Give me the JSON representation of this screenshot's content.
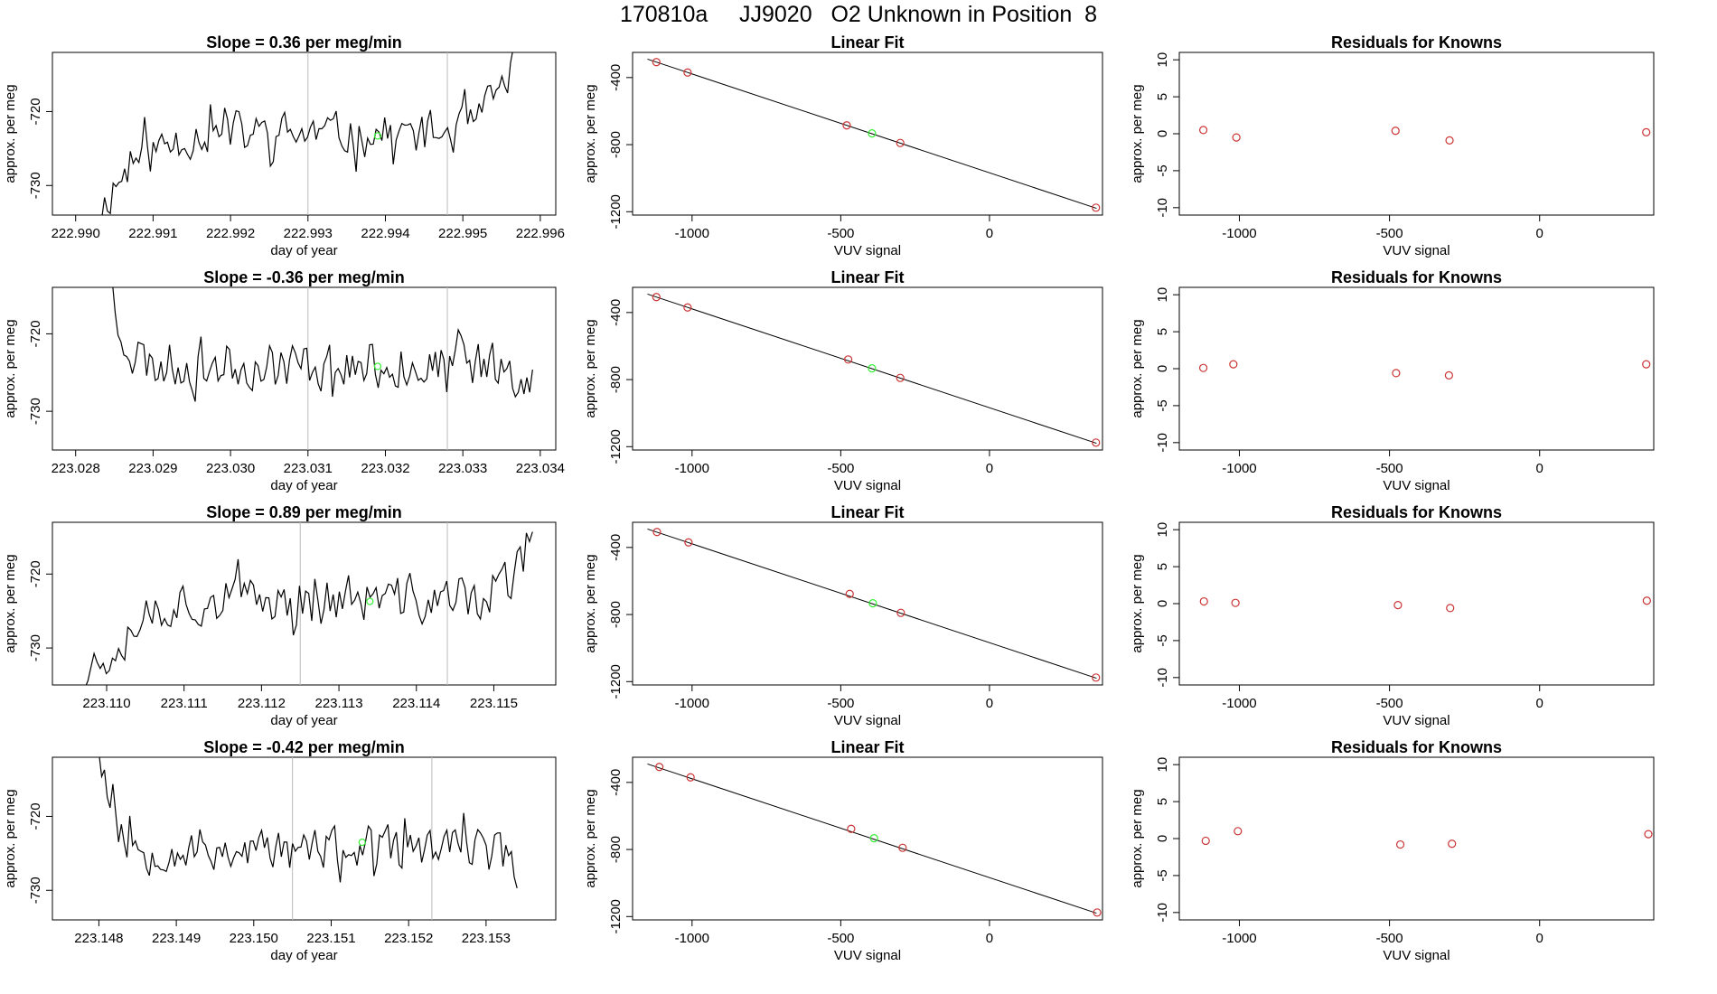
{
  "title": "170810a     JJ9020   O2 Unknown in Position  8",
  "colors": {
    "line": "#000000",
    "known": "#cc3333",
    "unknown": "#33ee33",
    "vline": "#bbbbbb",
    "axis": "#000000"
  },
  "chart_data": [
    {
      "type": "line",
      "panel": "time",
      "row": 1,
      "title": "Slope =  0.36  per meg/min",
      "xlabel": "day of year",
      "ylabel": "approx. per meg",
      "xlim": [
        222.9897,
        222.9962
      ],
      "ylim": [
        -734,
        -712
      ],
      "xticks": [
        222.99,
        222.991,
        222.992,
        222.993,
        222.994,
        222.995,
        222.996
      ],
      "xtick_labels": [
        "222.990",
        "222.991",
        "222.992",
        "222.993",
        "222.994",
        "222.995",
        "222.996"
      ],
      "yticks": [
        -720,
        -730
      ],
      "ytick_labels": [
        "-720",
        "-730"
      ],
      "vlines": [
        222.993,
        222.9948
      ],
      "unknown_point": {
        "x": 222.9939,
        "y": -723.3
      },
      "series_start": 222.9903,
      "series_end": 222.9958,
      "trend": [
        -734,
        -731,
        -729,
        -727,
        -726,
        -725,
        -724.5,
        -724,
        -723.5,
        -723,
        -723,
        -723,
        -723,
        -723,
        -723,
        -723,
        -723,
        -723,
        -723,
        -723,
        -723,
        -723,
        -723,
        -723,
        -723,
        -723,
        -723,
        -723,
        -723,
        -723,
        -723,
        -723,
        -722.5,
        -722,
        -721,
        -719,
        -716.5,
        -713.5,
        -710
      ],
      "noise_amp": 2.6,
      "seed": 11
    },
    {
      "type": "scatter",
      "panel": "fit",
      "row": 1,
      "title": "Linear Fit",
      "xlabel": "VUV signal",
      "ylabel": "approx. per meg",
      "xlim": [
        -1200,
        380
      ],
      "ylim": [
        -1220,
        -250
      ],
      "xticks": [
        -1000,
        -500,
        0
      ],
      "xtick_labels": [
        "-1000",
        "-500",
        "0"
      ],
      "yticks": [
        -400,
        -800,
        -1200
      ],
      "ytick_labels": [
        "-400",
        "-800",
        "-1200"
      ],
      "fit_line": {
        "x0": -1150,
        "y0": -290,
        "x1": 360,
        "y1": -1180
      },
      "knowns": [
        [
          -1120,
          -308
        ],
        [
          -1015,
          -370
        ],
        [
          -480,
          -685
        ],
        [
          -300,
          -790
        ],
        [
          358,
          -1176
        ]
      ],
      "unknown": [
        [
          -395,
          -733
        ]
      ]
    },
    {
      "type": "scatter",
      "panel": "resid",
      "row": 1,
      "title": "Residuals for Knowns",
      "xlabel": "VUV signal",
      "ylabel": "approx. per meg",
      "xlim": [
        -1200,
        380
      ],
      "ylim": [
        -11,
        11
      ],
      "xticks": [
        -1000,
        -500,
        0
      ],
      "xtick_labels": [
        "-1000",
        "-500",
        "0"
      ],
      "yticks": [
        10,
        5,
        0,
        -5,
        -10
      ],
      "ytick_labels": [
        "10",
        "5",
        "0",
        "-5",
        "-10"
      ],
      "points": [
        [
          -1120,
          0.5
        ],
        [
          -1010,
          -0.5
        ],
        [
          -480,
          0.4
        ],
        [
          -300,
          -0.9
        ],
        [
          355,
          0.2
        ]
      ]
    },
    {
      "type": "line",
      "panel": "time",
      "row": 2,
      "title": "Slope =  -0.36  per meg/min",
      "xlabel": "day of year",
      "ylabel": "approx. per meg",
      "xlim": [
        223.0277,
        223.0342
      ],
      "ylim": [
        -735,
        -714
      ],
      "xticks": [
        223.028,
        223.029,
        223.03,
        223.031,
        223.032,
        223.033,
        223.034
      ],
      "xtick_labels": [
        "223.028",
        "223.029",
        "223.030",
        "223.031",
        "223.032",
        "223.033",
        "223.034"
      ],
      "yticks": [
        -720,
        -730
      ],
      "ytick_labels": [
        "-720",
        "-730"
      ],
      "vlines": [
        223.031,
        223.0328
      ],
      "unknown_point": {
        "x": 223.0319,
        "y": -724.2
      },
      "series_start": 223.0284,
      "series_end": 223.0339,
      "trend": [
        -711,
        -718,
        -721.5,
        -723,
        -724,
        -724,
        -724,
        -724,
        -724,
        -724,
        -724,
        -724,
        -724,
        -724,
        -724,
        -724,
        -724,
        -724,
        -724,
        -724,
        -724,
        -724,
        -724,
        -724,
        -724,
        -724,
        -724,
        -724,
        -724,
        -724,
        -724,
        -724,
        -724,
        -724,
        -724,
        -724,
        -724.5,
        -725,
        -725.5
      ],
      "noise_amp": 2.8,
      "seed": 23
    },
    {
      "type": "scatter",
      "panel": "fit",
      "row": 2,
      "title": "Linear Fit",
      "xlabel": "VUV signal",
      "ylabel": "approx. per meg",
      "xlim": [
        -1200,
        380
      ],
      "ylim": [
        -1220,
        -250
      ],
      "xticks": [
        -1000,
        -500,
        0
      ],
      "xtick_labels": [
        "-1000",
        "-500",
        "0"
      ],
      "yticks": [
        -400,
        -800,
        -1200
      ],
      "ytick_labels": [
        "-400",
        "-800",
        "-1200"
      ],
      "fit_line": {
        "x0": -1150,
        "y0": -290,
        "x1": 360,
        "y1": -1180
      },
      "knowns": [
        [
          -1120,
          -308
        ],
        [
          -1015,
          -370
        ],
        [
          -475,
          -680
        ],
        [
          -300,
          -790
        ],
        [
          358,
          -1176
        ]
      ],
      "unknown": [
        [
          -395,
          -733
        ]
      ]
    },
    {
      "type": "scatter",
      "panel": "resid",
      "row": 2,
      "title": "Residuals for Knowns",
      "xlabel": "VUV signal",
      "ylabel": "approx. per meg",
      "xlim": [
        -1200,
        380
      ],
      "ylim": [
        -11,
        11
      ],
      "xticks": [
        -1000,
        -500,
        0
      ],
      "xtick_labels": [
        "-1000",
        "-500",
        "0"
      ],
      "yticks": [
        10,
        5,
        0,
        -5,
        -10
      ],
      "ytick_labels": [
        "10",
        "5",
        "0",
        "-5",
        "-10"
      ],
      "points": [
        [
          -1120,
          0.1
        ],
        [
          -1020,
          0.6
        ],
        [
          -478,
          -0.6
        ],
        [
          -302,
          -0.9
        ],
        [
          355,
          0.6
        ]
      ]
    },
    {
      "type": "line",
      "panel": "time",
      "row": 3,
      "title": "Slope =  0.89  per meg/min",
      "xlabel": "day of year",
      "ylabel": "approx. per meg",
      "xlim": [
        223.1093,
        223.1158
      ],
      "ylim": [
        -735,
        -713
      ],
      "xticks": [
        223.11,
        223.111,
        223.112,
        223.113,
        223.114,
        223.115
      ],
      "xtick_labels": [
        "223.110",
        "223.111",
        "223.112",
        "223.113",
        "223.114",
        "223.115"
      ],
      "yticks": [
        -720,
        -730
      ],
      "ytick_labels": [
        "-720",
        "-730"
      ],
      "vlines": [
        223.1125,
        223.1144
      ],
      "unknown_point": {
        "x": 223.1134,
        "y": -723.7
      },
      "series_start": 223.1096,
      "series_end": 223.1155,
      "trend": [
        -734,
        -733,
        -732,
        -730,
        -728,
        -726,
        -725,
        -724.5,
        -724,
        -723.8,
        -723.6,
        -723.5,
        -723.5,
        -723.5,
        -723.5,
        -723.5,
        -723.5,
        -723.5,
        -723.5,
        -723.5,
        -723.5,
        -723.5,
        -723.5,
        -723.5,
        -723.5,
        -723.5,
        -723.5,
        -723.5,
        -723.5,
        -723.5,
        -723.5,
        -723.5,
        -723.5,
        -723.5,
        -723,
        -722,
        -721,
        -719.5,
        -716.5
      ],
      "noise_amp": 3.0,
      "seed": 37
    },
    {
      "type": "scatter",
      "panel": "fit",
      "row": 3,
      "title": "Linear Fit",
      "xlabel": "VUV signal",
      "ylabel": "approx. per meg",
      "xlim": [
        -1200,
        380
      ],
      "ylim": [
        -1220,
        -250
      ],
      "xticks": [
        -1000,
        -500,
        0
      ],
      "xtick_labels": [
        "-1000",
        "-500",
        "0"
      ],
      "yticks": [
        -400,
        -800,
        -1200
      ],
      "ytick_labels": [
        "-400",
        "-800",
        "-1200"
      ],
      "fit_line": {
        "x0": -1150,
        "y0": -290,
        "x1": 360,
        "y1": -1180
      },
      "knowns": [
        [
          -1118,
          -308
        ],
        [
          -1012,
          -370
        ],
        [
          -470,
          -677
        ],
        [
          -298,
          -790
        ],
        [
          358,
          -1176
        ]
      ],
      "unknown": [
        [
          -392,
          -733
        ]
      ]
    },
    {
      "type": "scatter",
      "panel": "resid",
      "row": 3,
      "title": "Residuals for Knowns",
      "xlabel": "VUV signal",
      "ylabel": "approx. per meg",
      "xlim": [
        -1200,
        380
      ],
      "ylim": [
        -11,
        11
      ],
      "xticks": [
        -1000,
        -500,
        0
      ],
      "xtick_labels": [
        "-1000",
        "-500",
        "0"
      ],
      "points": [
        [
          -1118,
          0.3
        ],
        [
          -1013,
          0.1
        ],
        [
          -472,
          -0.2
        ],
        [
          -298,
          -0.6
        ],
        [
          357,
          0.4
        ]
      ],
      "yticks": [
        10,
        5,
        0,
        -5,
        -10
      ],
      "ytick_labels": [
        "10",
        "5",
        "0",
        "-5",
        "-10"
      ]
    },
    {
      "type": "line",
      "panel": "time",
      "row": 4,
      "title": "Slope =  -0.42  per meg/min",
      "xlabel": "day of year",
      "ylabel": "approx. per meg",
      "xlim": [
        223.1474,
        223.1539
      ],
      "ylim": [
        -734,
        -712
      ],
      "xticks": [
        223.148,
        223.149,
        223.15,
        223.151,
        223.152,
        223.153
      ],
      "xtick_labels": [
        "223.148",
        "223.149",
        "223.150",
        "223.151",
        "223.152",
        "223.153"
      ],
      "yticks": [
        -720,
        -730
      ],
      "ytick_labels": [
        "-720",
        "-730"
      ],
      "vlines": [
        223.1505,
        223.1523
      ],
      "unknown_point": {
        "x": 223.1514,
        "y": -723.5
      },
      "series_start": 223.148,
      "series_end": 223.1534,
      "trend": [
        -710,
        -718,
        -722,
        -724,
        -724.5,
        -724.5,
        -724.5,
        -724.5,
        -724.5,
        -724.5,
        -724.5,
        -724.5,
        -724.5,
        -724.5,
        -724.5,
        -724.5,
        -724.5,
        -724.5,
        -724.5,
        -724.5,
        -724.5,
        -724.5,
        -724.5,
        -724.5,
        -724.5,
        -724.5,
        -724.5,
        -724.5,
        -724.5,
        -724.5,
        -724.5,
        -724.5,
        -724.5,
        -724.5,
        -724.5,
        -724.5,
        -725,
        -725.5,
        -726.5
      ],
      "noise_amp": 2.7,
      "seed": 53
    },
    {
      "type": "scatter",
      "panel": "fit",
      "row": 4,
      "title": "Linear Fit",
      "xlabel": "VUV signal",
      "ylabel": "approx. per meg",
      "xlim": [
        -1200,
        380
      ],
      "ylim": [
        -1220,
        -250
      ],
      "xticks": [
        -1000,
        -500,
        0
      ],
      "xtick_labels": [
        "-1000",
        "-500",
        "0"
      ],
      "yticks": [
        -400,
        -800,
        -1200
      ],
      "ytick_labels": [
        "-400",
        "-800",
        "-1200"
      ],
      "fit_line": {
        "x0": -1150,
        "y0": -290,
        "x1": 360,
        "y1": -1180
      },
      "knowns": [
        [
          -1110,
          -308
        ],
        [
          -1005,
          -370
        ],
        [
          -465,
          -677
        ],
        [
          -292,
          -790
        ],
        [
          362,
          -1176
        ]
      ],
      "unknown": [
        [
          -388,
          -733
        ]
      ]
    },
    {
      "type": "scatter",
      "panel": "resid",
      "row": 4,
      "title": "Residuals for Knowns",
      "xlabel": "VUV signal",
      "ylabel": "approx. per meg",
      "xlim": [
        -1200,
        380
      ],
      "ylim": [
        -11,
        11
      ],
      "xticks": [
        -1000,
        -500,
        0
      ],
      "xtick_labels": [
        "-1000",
        "-500",
        "0"
      ],
      "yticks": [
        10,
        5,
        0,
        -5,
        -10
      ],
      "ytick_labels": [
        "10",
        "5",
        "0",
        "-5",
        "-10"
      ],
      "points": [
        [
          -1112,
          -0.3
        ],
        [
          -1005,
          1.0
        ],
        [
          -464,
          -0.8
        ],
        [
          -292,
          -0.7
        ],
        [
          362,
          0.6
        ]
      ]
    }
  ]
}
